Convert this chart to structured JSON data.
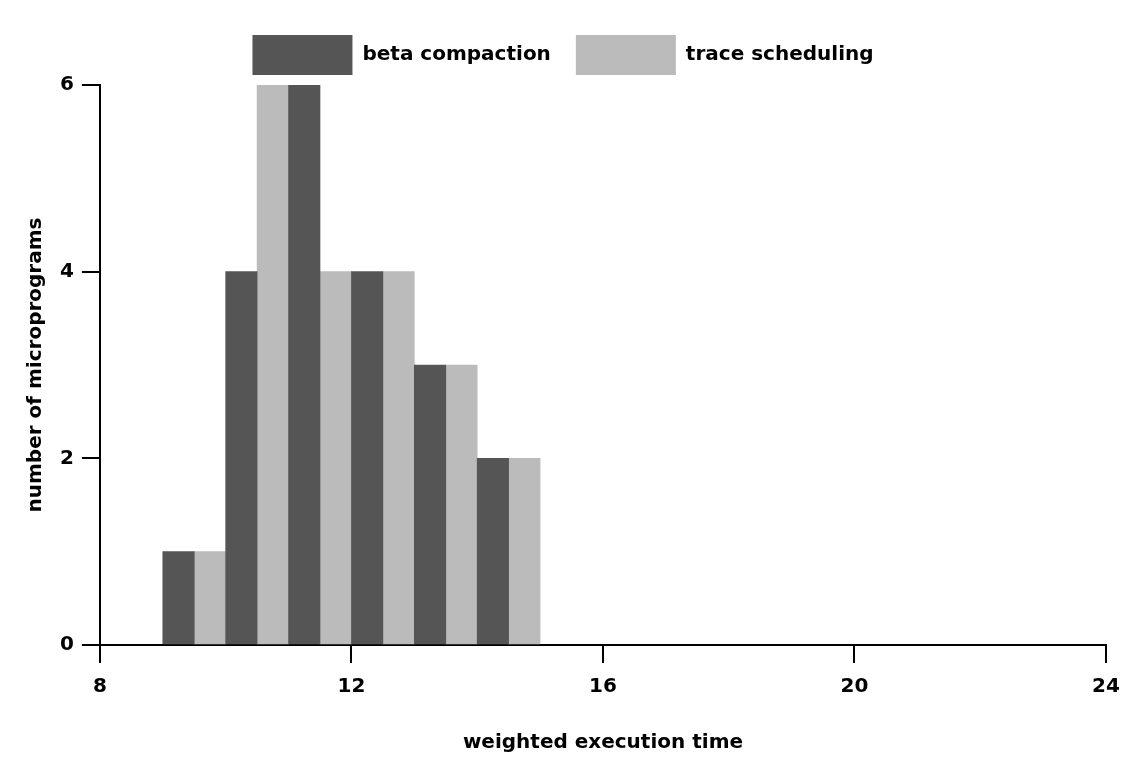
{
  "chart_data": {
    "type": "histogram",
    "xlabel": "weighted execution time",
    "ylabel": "number of microprograms",
    "bins": [
      9,
      10,
      11,
      12,
      13,
      14,
      15
    ],
    "series": [
      {
        "name": "beta compaction",
        "color": "#555555",
        "values": [
          1,
          4,
          6,
          4,
          3,
          2
        ]
      },
      {
        "name": "trace scheduling",
        "color": "#bbbbbb",
        "values": [
          1,
          6,
          4,
          4,
          3,
          2
        ]
      }
    ],
    "xlim": [
      8,
      24
    ],
    "xticks": [
      8,
      12,
      16,
      20,
      24
    ],
    "ylim": [
      0,
      6
    ],
    "yticks": [
      0,
      2,
      4,
      6
    ],
    "legend": "top"
  }
}
